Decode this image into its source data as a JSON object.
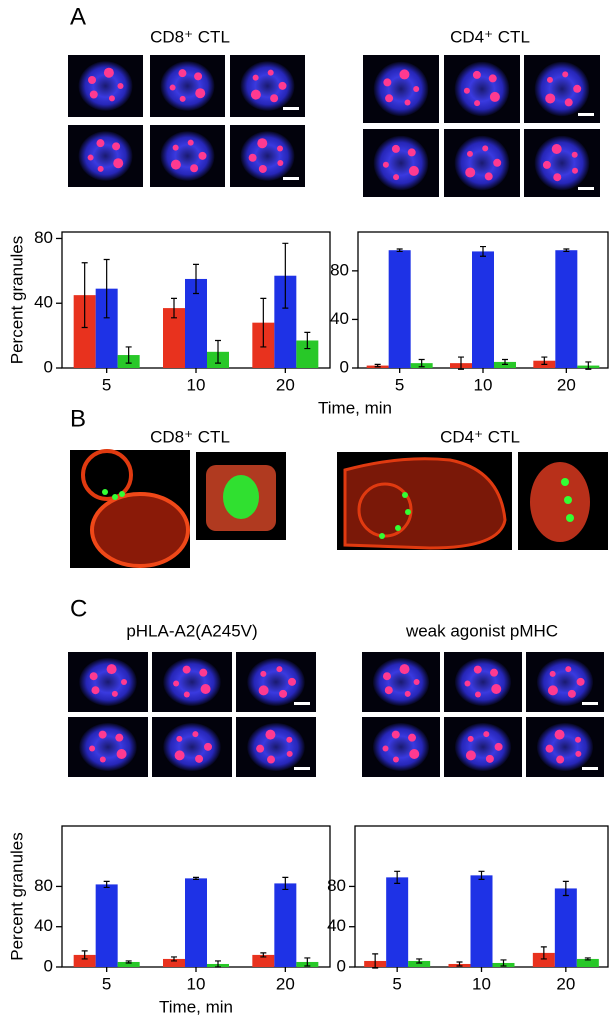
{
  "panels": [
    {
      "label": "A",
      "captions": [
        "CD8⁺ CTL",
        "CD4⁺ CTL"
      ]
    },
    {
      "label": "B",
      "captions": [
        "CD8⁺ CTL",
        "CD4⁺ CTL"
      ]
    },
    {
      "label": "C",
      "captions": [
        "pHLA-A2(A245V)",
        "weak agonist pMHC"
      ]
    }
  ],
  "chart_data": [
    {
      "type": "bar",
      "ylabel": "Percent granules",
      "xlabel": "Time, min",
      "categories": [
        "5",
        "10",
        "20"
      ],
      "ylim": [
        0,
        84
      ],
      "yticks": [
        0,
        40,
        80
      ],
      "series": [
        {
          "color": "#e8321e",
          "values": [
            45,
            37,
            28
          ],
          "errors": [
            20,
            6,
            15
          ]
        },
        {
          "color": "#1e32e6",
          "values": [
            49,
            55,
            57
          ],
          "errors": [
            18,
            9,
            20
          ]
        },
        {
          "color": "#28c828",
          "values": [
            8,
            10,
            17
          ],
          "errors": [
            5,
            7,
            5
          ]
        }
      ]
    },
    {
      "type": "bar",
      "categories": [
        "5",
        "10",
        "20"
      ],
      "ylim": [
        0,
        112
      ],
      "yticks": [
        0,
        40,
        80
      ],
      "series": [
        {
          "color": "#e8321e",
          "values": [
            2,
            4,
            6
          ],
          "errors": [
            1,
            5,
            3
          ]
        },
        {
          "color": "#1e32e6",
          "values": [
            97,
            96,
            97
          ],
          "errors": [
            1,
            4,
            1
          ]
        },
        {
          "color": "#28c828",
          "values": [
            4,
            5,
            2
          ],
          "errors": [
            3,
            2,
            3
          ]
        }
      ]
    },
    {
      "type": "bar",
      "ylabel": "Percent granules",
      "xlabel": "Time, min",
      "categories": [
        "5",
        "10",
        "20"
      ],
      "ylim": [
        0,
        140
      ],
      "yticks": [
        0,
        40,
        80
      ],
      "series": [
        {
          "color": "#e8321e",
          "values": [
            12,
            8,
            12
          ],
          "errors": [
            4,
            2,
            2
          ]
        },
        {
          "color": "#1e32e6",
          "values": [
            82,
            88,
            83
          ],
          "errors": [
            3,
            1,
            6
          ]
        },
        {
          "color": "#28c828",
          "values": [
            5,
            3,
            5
          ],
          "errors": [
            1,
            3,
            4
          ]
        }
      ]
    },
    {
      "type": "bar",
      "categories": [
        "5",
        "10",
        "20"
      ],
      "ylim": [
        0,
        140
      ],
      "yticks": [
        0,
        40,
        80
      ],
      "series": [
        {
          "color": "#e8321e",
          "values": [
            6,
            3,
            14
          ],
          "errors": [
            7,
            2,
            6
          ]
        },
        {
          "color": "#1e32e6",
          "values": [
            89,
            91,
            78
          ],
          "errors": [
            6,
            4,
            7
          ]
        },
        {
          "color": "#28c828",
          "values": [
            6,
            4,
            8
          ],
          "errors": [
            2,
            3,
            1
          ]
        }
      ]
    }
  ]
}
